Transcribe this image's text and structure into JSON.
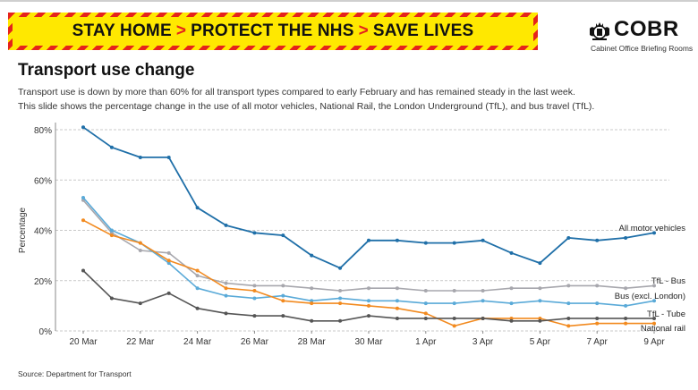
{
  "banner": {
    "part1": "STAY HOME",
    "part2": "PROTECT THE NHS",
    "part3": "SAVE LIVES",
    "separator": ">"
  },
  "logo": {
    "title": "COBR",
    "subtitle": "Cabinet Office Briefing Rooms",
    "icon": "royal-crest-icon"
  },
  "title": "Transport use change",
  "subtitle_lines": [
    "Transport use is down by more than 60% for all transport types compared to early February and has remained steady in the last week.",
    "This slide shows the percentage change in the use of all motor vehicles, National Rail, the London Underground (TfL), and bus travel (TfL)."
  ],
  "source": "Source: Department for Transport",
  "colors": {
    "banner_yellow": "#ffe800",
    "banner_red": "#e5231b",
    "motor": "#1f6fa8",
    "tfl_bus": "#a7a7ad",
    "bus_excl": "#5aaad8",
    "tfl_tube": "#f28a1f",
    "national_rail": "#555555"
  },
  "chart_data": {
    "type": "line",
    "title": "",
    "xlabel": "",
    "ylabel": "Percentage",
    "ylim": [
      0,
      80
    ],
    "yticks": [
      0,
      20,
      40,
      60,
      80
    ],
    "ytick_labels": [
      "0%",
      "20%",
      "40%",
      "60%",
      "80%"
    ],
    "grid": true,
    "x": [
      "20 Mar",
      "21 Mar",
      "22 Mar",
      "23 Mar",
      "24 Mar",
      "25 Mar",
      "26 Mar",
      "27 Mar",
      "28 Mar",
      "29 Mar",
      "30 Mar",
      "31 Mar",
      "1 Apr",
      "2 Apr",
      "3 Apr",
      "4 Apr",
      "5 Apr",
      "6 Apr",
      "7 Apr",
      "8 Apr",
      "9 Apr"
    ],
    "xtick_labels": [
      "20 Mar",
      "22 Mar",
      "24 Mar",
      "26 Mar",
      "28 Mar",
      "30 Mar",
      "1 Apr",
      "3 Apr",
      "5 Apr",
      "7 Apr",
      "9 Apr"
    ],
    "xtick_indices": [
      0,
      2,
      4,
      6,
      8,
      10,
      12,
      14,
      16,
      18,
      20
    ],
    "series": [
      {
        "name": "All motor vehicles",
        "color": "#1f6fa8",
        "width": 1.8,
        "values": [
          81,
          73,
          69,
          69,
          49,
          42,
          39,
          38,
          30,
          25,
          36,
          36,
          35,
          35,
          36,
          31,
          27,
          37,
          36,
          37,
          39
        ]
      },
      {
        "name": "TfL - Bus",
        "color": "#a7a7ad",
        "width": 1.6,
        "values": [
          52,
          39,
          32,
          31,
          22,
          19,
          18,
          18,
          17,
          16,
          17,
          17,
          16,
          16,
          16,
          17,
          17,
          18,
          18,
          17,
          18
        ]
      },
      {
        "name": "Bus (excl. London)",
        "color": "#5aaad8",
        "width": 1.6,
        "values": [
          53,
          40,
          35,
          27,
          17,
          14,
          13,
          14,
          12,
          13,
          12,
          12,
          11,
          11,
          12,
          11,
          12,
          11,
          11,
          10,
          12
        ]
      },
      {
        "name": "TfL - Tube",
        "color": "#f28a1f",
        "width": 1.6,
        "values": [
          44,
          38,
          35,
          28,
          24,
          17,
          16,
          12,
          11,
          11,
          10,
          9,
          7,
          2,
          5,
          5,
          5,
          2,
          3,
          3,
          3
        ]
      },
      {
        "name": "National rail",
        "color": "#555555",
        "width": 1.6,
        "values": [
          24,
          13,
          11,
          15,
          9,
          7,
          6,
          6,
          4,
          4,
          6,
          5,
          5,
          5,
          5,
          4,
          4,
          5,
          5,
          5,
          5
        ]
      }
    ]
  }
}
